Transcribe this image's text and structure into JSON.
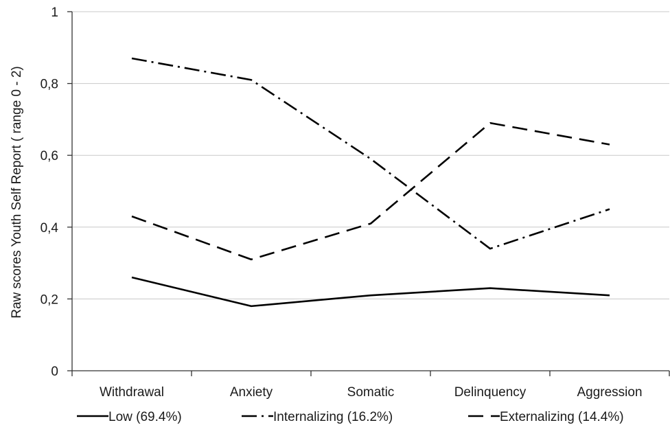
{
  "chart_data": {
    "type": "line",
    "title": "",
    "xlabel": "",
    "ylabel": "Raw scores Youth Self Report ( range 0 - 2)",
    "ylim": [
      0,
      1
    ],
    "yticks": [
      0,
      0.2,
      0.4,
      0.6,
      0.8,
      1
    ],
    "ytick_labels": [
      "0",
      "0,2",
      "0,4",
      "0,6",
      "0,8",
      "1"
    ],
    "categories": [
      "Withdrawal",
      "Anxiety",
      "Somatic",
      "Delinquency",
      "Aggression"
    ],
    "grid": "horizontal",
    "legend_position": "bottom",
    "series": [
      {
        "name": "Low (69.4%)",
        "values": [
          0.26,
          0.18,
          0.21,
          0.23,
          0.21
        ],
        "style": "solid",
        "color": "#000000"
      },
      {
        "name": "Internalizing (16.2%)",
        "values": [
          0.87,
          0.81,
          0.59,
          0.34,
          0.45
        ],
        "style": "dashdot",
        "color": "#000000"
      },
      {
        "name": "Externalizing (14.4%)",
        "values": [
          0.43,
          0.31,
          0.41,
          0.69,
          0.63
        ],
        "style": "dashed",
        "color": "#000000"
      }
    ]
  }
}
